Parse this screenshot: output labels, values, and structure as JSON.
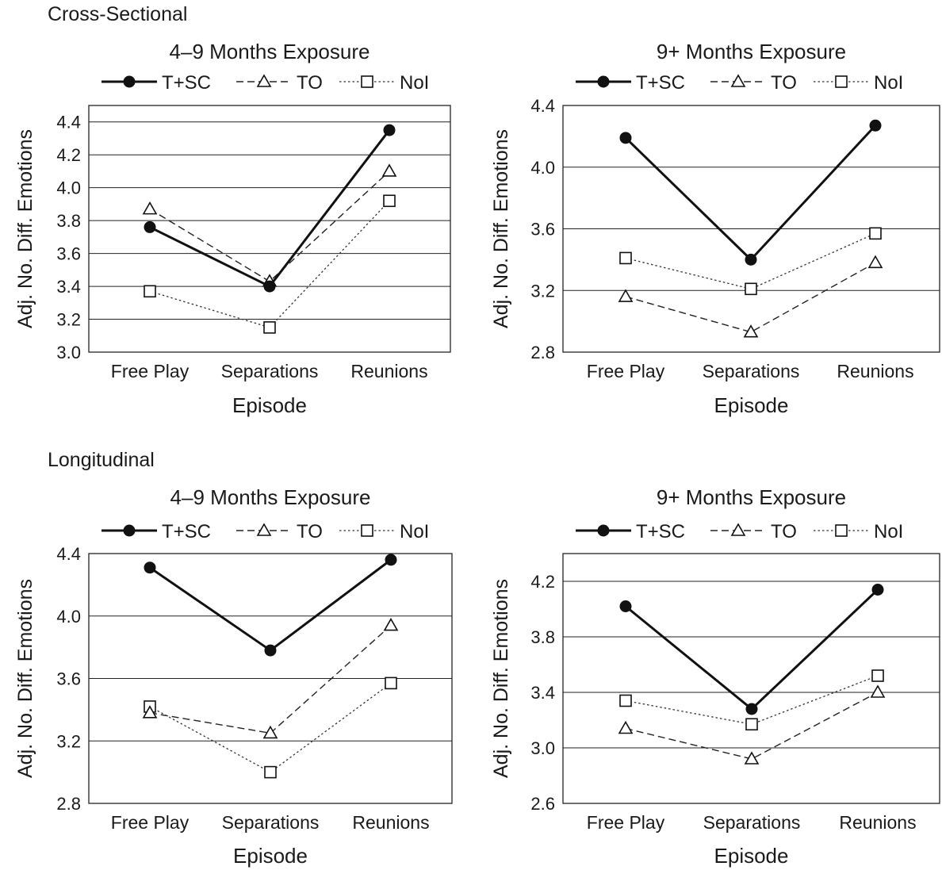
{
  "sections": {
    "cross": "Cross-Sectional",
    "longitudinal": "Longitudinal"
  },
  "legend": [
    {
      "name": "T+SC",
      "style": "solid",
      "marker": "filled-circle"
    },
    {
      "name": "TO",
      "style": "dashed",
      "marker": "open-triangle"
    },
    {
      "name": "NoI",
      "style": "dotted",
      "marker": "open-square"
    }
  ],
  "chart_data": [
    {
      "type": "line",
      "section": "Cross-Sectional",
      "title": "4–9 Months Exposure",
      "xlabel": "Episode",
      "ylabel": "Adj. No. Diff. Emotions",
      "categories": [
        "Free Play",
        "Separations",
        "Reunions"
      ],
      "ylim": [
        3.0,
        4.5
      ],
      "yticks": [
        "3.0",
        "3.2",
        "3.4",
        "3.6",
        "3.8",
        "4.0",
        "4.2",
        "4.4"
      ],
      "grid": true,
      "series": [
        {
          "name": "T+SC",
          "values": [
            3.76,
            3.4,
            4.35
          ]
        },
        {
          "name": "TO",
          "values": [
            3.87,
            3.43,
            4.1
          ]
        },
        {
          "name": "NoI",
          "values": [
            3.37,
            3.15,
            3.92
          ]
        }
      ]
    },
    {
      "type": "line",
      "section": "Cross-Sectional",
      "title": "9+ Months Exposure",
      "xlabel": "Episode",
      "ylabel": "Adj. No. Diff. Emotions",
      "categories": [
        "Free Play",
        "Separations",
        "Reunions"
      ],
      "ylim": [
        2.8,
        4.4
      ],
      "yticks": [
        "2.8",
        "3.2",
        "3.6",
        "4.0",
        "4.4"
      ],
      "grid": true,
      "series": [
        {
          "name": "T+SC",
          "values": [
            4.19,
            3.4,
            4.27
          ]
        },
        {
          "name": "TO",
          "values": [
            3.16,
            2.93,
            3.38
          ]
        },
        {
          "name": "NoI",
          "values": [
            3.41,
            3.21,
            3.57
          ]
        }
      ]
    },
    {
      "type": "line",
      "section": "Longitudinal",
      "title": "4–9 Months Exposure",
      "xlabel": "Episode",
      "ylabel": "Adj. No. Diff. Emotions",
      "categories": [
        "Free Play",
        "Separations",
        "Reunions"
      ],
      "ylim": [
        2.8,
        4.4
      ],
      "yticks": [
        "2.8",
        "3.2",
        "3.6",
        "4.0",
        "4.4"
      ],
      "grid": true,
      "series": [
        {
          "name": "T+SC",
          "values": [
            4.31,
            3.78,
            4.36
          ]
        },
        {
          "name": "TO",
          "values": [
            3.38,
            3.25,
            3.94
          ]
        },
        {
          "name": "NoI",
          "values": [
            3.42,
            3.0,
            3.57
          ]
        }
      ]
    },
    {
      "type": "line",
      "section": "Longitudinal",
      "title": "9+ Months Exposure",
      "xlabel": "Episode",
      "ylabel": "Adj. No. Diff. Emotions",
      "categories": [
        "Free Play",
        "Separations",
        "Reunions"
      ],
      "ylim": [
        2.6,
        4.4
      ],
      "yticks": [
        "2.6",
        "3.0",
        "3.4",
        "3.8",
        "4.2"
      ],
      "grid": true,
      "series": [
        {
          "name": "T+SC",
          "values": [
            4.02,
            3.28,
            4.14
          ]
        },
        {
          "name": "TO",
          "values": [
            3.14,
            2.92,
            3.4
          ]
        },
        {
          "name": "NoI",
          "values": [
            3.34,
            3.17,
            3.52
          ]
        }
      ]
    }
  ]
}
